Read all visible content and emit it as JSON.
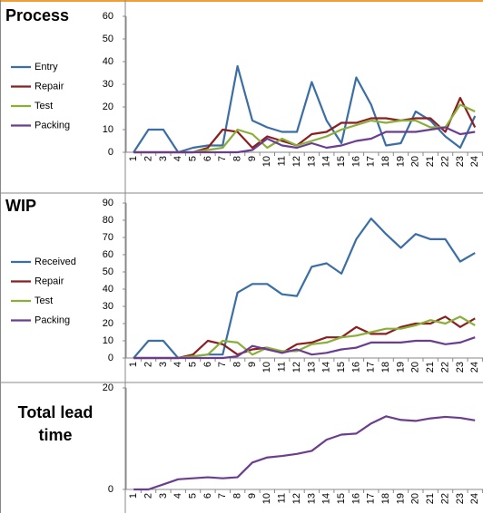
{
  "chart_data": [
    {
      "type": "line",
      "title": "Process",
      "categories": [
        "1",
        "2",
        "3",
        "4",
        "5",
        "6",
        "7",
        "8",
        "9",
        "10",
        "11",
        "12",
        "13",
        "14",
        "15",
        "16",
        "17",
        "18",
        "19",
        "20",
        "21",
        "22",
        "23",
        "24"
      ],
      "ylim": [
        0,
        60
      ],
      "yticks": [
        0,
        10,
        20,
        30,
        40,
        50,
        60
      ],
      "grid": false,
      "series": [
        {
          "name": "Entry",
          "color": "#3a6ea5",
          "values": [
            0,
            10,
            10,
            0,
            2,
            3,
            3,
            38,
            14,
            11,
            9,
            9,
            31,
            14,
            4,
            33,
            21,
            3,
            4,
            18,
            14,
            7,
            2,
            16
          ]
        },
        {
          "name": "Repair",
          "color": "#8b1f1f",
          "values": [
            0,
            0,
            0,
            0,
            0,
            2,
            10,
            9,
            2,
            7,
            5,
            3,
            8,
            9,
            13,
            13,
            15,
            15,
            14,
            15,
            15,
            9,
            24,
            11
          ]
        },
        {
          "name": "Test",
          "color": "#8aaf38",
          "values": [
            0,
            0,
            0,
            0,
            0,
            1,
            2,
            10,
            8,
            2,
            6,
            3,
            5,
            7,
            10,
            12,
            14,
            13,
            14,
            14,
            11,
            11,
            21,
            18
          ]
        },
        {
          "name": "Packing",
          "color": "#6b3d8f",
          "values": [
            0,
            0,
            0,
            0,
            0,
            0,
            0,
            0,
            1,
            6,
            3,
            2,
            4,
            2,
            3,
            5,
            6,
            9,
            9,
            9,
            10,
            11,
            8,
            9
          ]
        }
      ]
    },
    {
      "type": "line",
      "title": "WIP",
      "categories": [
        "1",
        "2",
        "3",
        "4",
        "5",
        "6",
        "7",
        "8",
        "9",
        "10",
        "11",
        "12",
        "13",
        "14",
        "15",
        "16",
        "17",
        "18",
        "19",
        "20",
        "21",
        "22",
        "23",
        "24"
      ],
      "ylim": [
        0,
        90
      ],
      "yticks": [
        0,
        10,
        20,
        30,
        40,
        50,
        60,
        70,
        80,
        90
      ],
      "grid": false,
      "series": [
        {
          "name": "Received",
          "color": "#3a6ea5",
          "values": [
            0,
            10,
            10,
            0,
            1,
            2,
            2,
            38,
            43,
            43,
            37,
            36,
            53,
            55,
            49,
            69,
            81,
            72,
            64,
            72,
            69,
            69,
            56,
            61
          ]
        },
        {
          "name": "Repair",
          "color": "#8b1f1f",
          "values": [
            0,
            0,
            0,
            0,
            2,
            10,
            8,
            2,
            5,
            6,
            3,
            8,
            9,
            12,
            12,
            18,
            14,
            14,
            18,
            20,
            20,
            24,
            18,
            23
          ]
        },
        {
          "name": "Test",
          "color": "#8aaf38",
          "values": [
            0,
            0,
            0,
            0,
            1,
            2,
            10,
            9,
            2,
            6,
            4,
            4,
            8,
            9,
            12,
            13,
            15,
            17,
            17,
            19,
            22,
            20,
            24,
            19
          ]
        },
        {
          "name": "Packing",
          "color": "#6b3d8f",
          "values": [
            0,
            0,
            0,
            0,
            0,
            0,
            0,
            1,
            7,
            5,
            3,
            5,
            2,
            3,
            5,
            6,
            9,
            9,
            9,
            10,
            10,
            8,
            9,
            12
          ]
        }
      ]
    },
    {
      "type": "line",
      "title": "Total lead time",
      "categories": [
        "1",
        "2",
        "3",
        "4",
        "5",
        "6",
        "7",
        "8",
        "9",
        "10",
        "11",
        "12",
        "13",
        "14",
        "15",
        "16",
        "17",
        "18",
        "19",
        "20",
        "21",
        "22",
        "23",
        "24"
      ],
      "ylim": [
        0,
        20
      ],
      "yticks": [
        0,
        20
      ],
      "grid": false,
      "series": [
        {
          "color": "#6b3d8f",
          "values": [
            0,
            0,
            1,
            2,
            2.2,
            2.4,
            2.2,
            2.4,
            5.3,
            6.3,
            6.6,
            7,
            7.6,
            9.8,
            10.8,
            11,
            13,
            14.4,
            13.7,
            13.5,
            14,
            14.3,
            14.1,
            13.6
          ]
        }
      ]
    }
  ]
}
